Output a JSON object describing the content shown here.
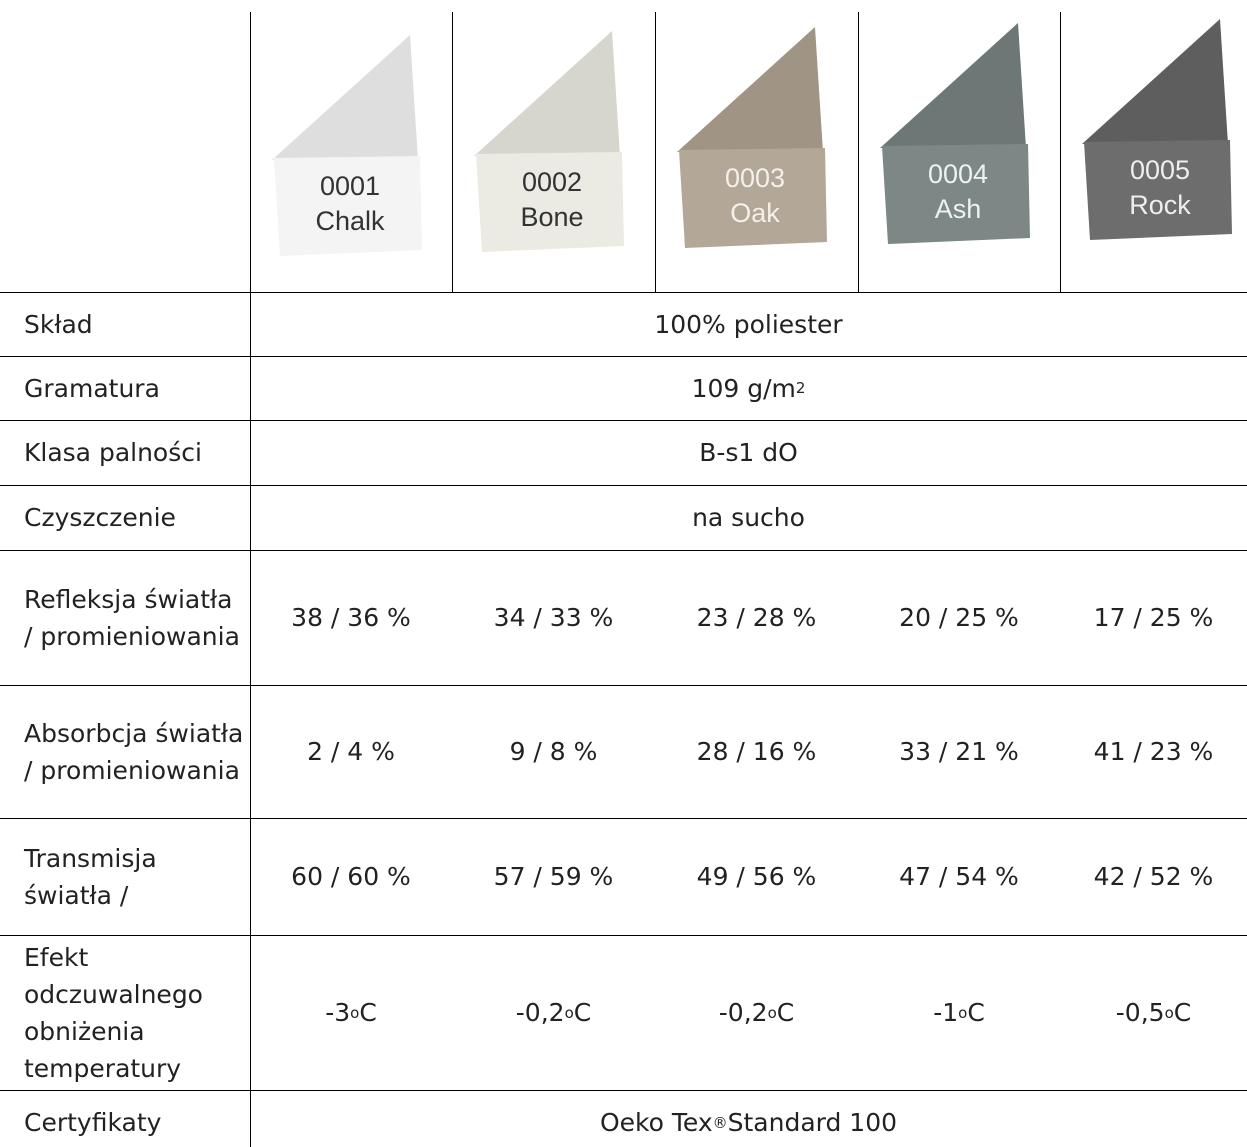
{
  "swatches": [
    {
      "code": "0001",
      "name": "Chalk"
    },
    {
      "code": "0002",
      "name": "Bone"
    },
    {
      "code": "0003",
      "name": "Oak"
    },
    {
      "code": "0004",
      "name": "Ash"
    },
    {
      "code": "0005",
      "name": "Rock"
    }
  ],
  "rows": [
    {
      "label": "Skład",
      "value": "100% poliester"
    },
    {
      "label": "Gramatura",
      "value": [
        "109 g/m",
        "2"
      ]
    },
    {
      "label": "Klasa palności",
      "value": "B-s1 dO"
    },
    {
      "label": "Czyszczenie",
      "value": "na sucho"
    },
    {
      "label": "Refleksja światła / promieniowania",
      "values": [
        "38 / 36 %",
        "34 / 33 %",
        "23 / 28 %",
        "20 / 25 %",
        "17 / 25 %"
      ]
    },
    {
      "label": "Absorbcja światła / promieniowania",
      "values": [
        "2 / 4 %",
        "9 / 8 %",
        "28 / 16 %",
        "33 / 21 %",
        "41 / 23 %"
      ]
    },
    {
      "label": "Transmisja światła /",
      "values": [
        "60 / 60 %",
        "57 / 59 %",
        "49 / 56 %",
        "47 / 54 %",
        "42 / 52 %"
      ]
    },
    {
      "label": "Efekt odczuwalnego obniżenia temperatury",
      "values": [
        [
          "-3 ",
          "o",
          "C"
        ],
        [
          "-0,2 ",
          "o",
          "C"
        ],
        [
          "-0,2 ",
          "o",
          "C"
        ],
        [
          "-1 ",
          "o",
          "C"
        ],
        [
          "-0,5 ",
          "o",
          "C"
        ]
      ]
    },
    {
      "label": "Certyfikaty",
      "value": [
        "Oeko Tex",
        "®",
        " Standard 100"
      ]
    }
  ]
}
